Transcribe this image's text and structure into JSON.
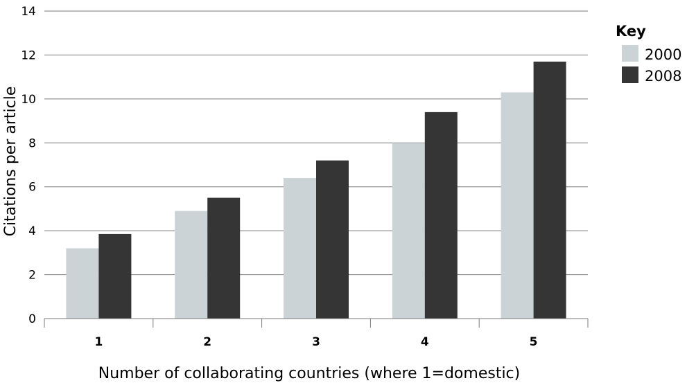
{
  "chart_data": {
    "type": "bar",
    "categories": [
      "1",
      "2",
      "3",
      "4",
      "5"
    ],
    "series": [
      {
        "name": "2000",
        "values": [
          3.2,
          4.9,
          6.4,
          8.0,
          10.3
        ],
        "color": "#ccd3d6"
      },
      {
        "name": "2008",
        "values": [
          3.85,
          5.5,
          7.2,
          9.4,
          11.7
        ],
        "color": "#353535"
      }
    ],
    "title": "",
    "xlabel": "Number of collaborating countries (where 1=domestic)",
    "ylabel": "Citations per article",
    "ylim": [
      0,
      14
    ],
    "yticks": [
      0,
      2,
      4,
      6,
      8,
      10,
      12,
      14
    ],
    "grid": true,
    "legend": {
      "title": "Key",
      "position": "top-right"
    }
  }
}
